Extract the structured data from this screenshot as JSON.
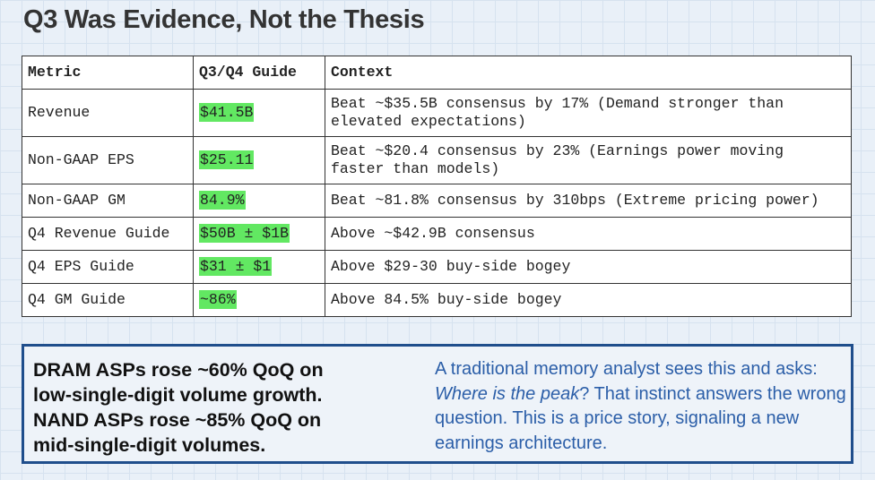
{
  "title": "Q3 Was Evidence, Not the Thesis",
  "table": {
    "header": [
      "Metric",
      "Q3/Q4 Guide",
      "Context"
    ],
    "rows": [
      [
        "Revenue",
        "$41.5B",
        "Beat ~$35.5B consensus by 17% (Demand stronger than elevated expectations)"
      ],
      [
        "Non-GAAP EPS",
        "$25.11",
        "Beat ~$20.4 consensus by 23% (Earnings power moving faster than models)"
      ],
      [
        "Non-GAAP GM",
        "84.9%",
        "Beat ~81.8% consensus by 310bps (Extreme pricing power)"
      ],
      [
        "Q4 Revenue Guide",
        "$50B ± $1B",
        "Above ~$42.9B consensus"
      ],
      [
        "Q4 EPS Guide",
        "$31 ± $1",
        "Above $29-30 buy-side bogey"
      ],
      [
        "Q4 GM Guide",
        "~86%",
        "Above 84.5% buy-side bogey"
      ]
    ]
  },
  "callout": {
    "left_lines": [
      "DRAM ASPs rose ~60% QoQ on",
      "low-single-digit volume growth.",
      "NAND ASPs rose ~85% QoQ on",
      "mid-single-digit volumes."
    ],
    "right": {
      "before": "A traditional memory analyst sees this and asks: ",
      "italic": "Where is the peak",
      "after": "? That instinct answers the wrong question. This is a price story, signaling a new earnings architecture."
    }
  }
}
